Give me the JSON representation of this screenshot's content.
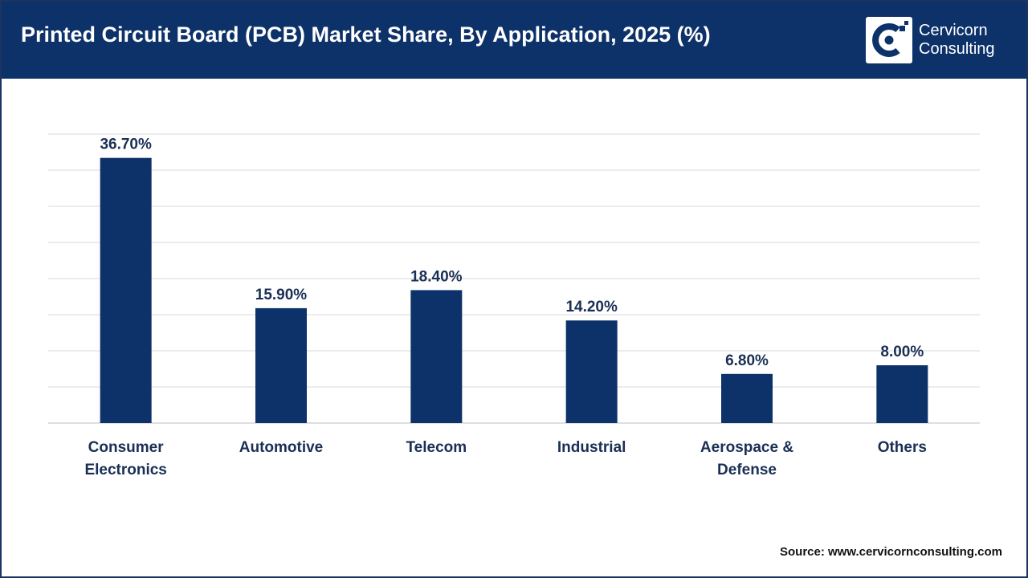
{
  "header": {
    "title": "Printed Circuit Board (PCB) Market Share, By Application, 2025 (%)",
    "logo_line1": "Cervicorn",
    "logo_line2": "Consulting"
  },
  "colors": {
    "header_bg": "#0d3169",
    "bar": "#0d3169",
    "label": "#1a2f55",
    "grid": "#d9d9d9"
  },
  "chart_data": {
    "type": "bar",
    "title": "Printed Circuit Board (PCB) Market Share, By Application, 2025 (%)",
    "categories": [
      [
        "Consumer",
        "Electronics"
      ],
      [
        "Automotive"
      ],
      [
        "Telecom"
      ],
      [
        "Industrial"
      ],
      [
        "Aerospace &",
        "Defense"
      ],
      [
        "Others"
      ]
    ],
    "values": [
      36.7,
      15.9,
      18.4,
      14.2,
      6.8,
      8.0
    ],
    "value_labels": [
      "36.70%",
      "15.90%",
      "18.40%",
      "14.20%",
      "6.80%",
      "8.00%"
    ],
    "xlabel": "",
    "ylabel": "",
    "ylim": [
      0,
      40
    ],
    "y_axis_visible": false,
    "grid": true,
    "gridline_count": 8,
    "legend": "none"
  },
  "footer": {
    "source": "Source: www.cervicornconsulting.com"
  }
}
